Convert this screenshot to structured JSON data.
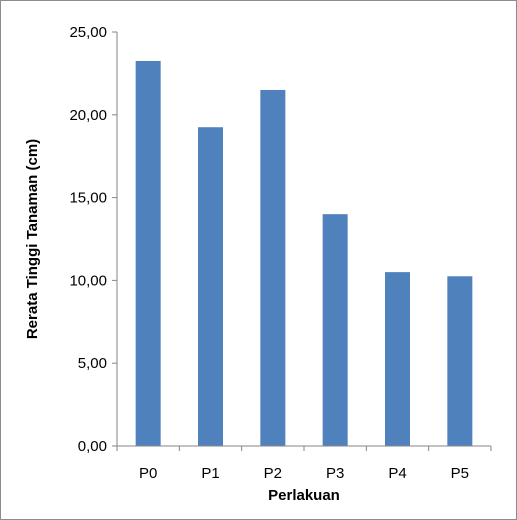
{
  "chart_data": {
    "type": "bar",
    "title": "",
    "xlabel": "Perlakuan",
    "ylabel": "Rerata Tinggi Tanaman (cm)",
    "categories": [
      "P0",
      "P1",
      "P2",
      "P3",
      "P4",
      "P5"
    ],
    "values": [
      23.25,
      19.25,
      21.5,
      14.0,
      10.5,
      10.25
    ],
    "ylim": [
      0,
      25
    ],
    "yticks": [
      "0,00",
      "5,00",
      "10,00",
      "15,00",
      "20,00",
      "25,00"
    ],
    "grid": false,
    "legend": "none",
    "colors": {
      "bar": "#4f81bd",
      "axis": "#868686"
    }
  }
}
